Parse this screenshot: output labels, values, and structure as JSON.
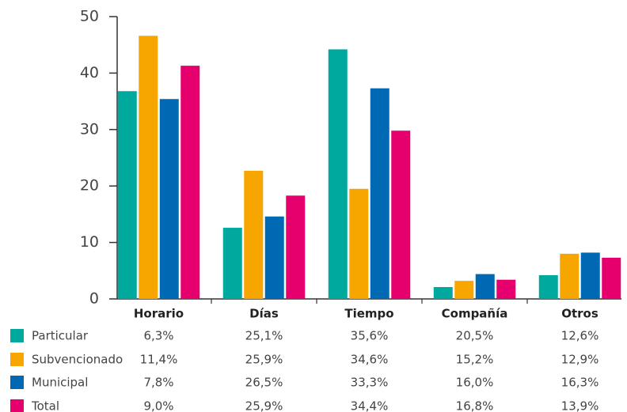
{
  "chart_data": {
    "type": "bar",
    "categories": [
      "Horario",
      "Días",
      "Tiempo",
      "Compañía",
      "Otros"
    ],
    "series": [
      {
        "name": "Particular",
        "color": "#00a99d",
        "values": [
          36.8,
          12.6,
          44.2,
          2.1,
          4.2
        ]
      },
      {
        "name": "Subvencionado",
        "color": "#f7a600",
        "values": [
          46.6,
          22.7,
          19.5,
          3.2,
          8.0
        ]
      },
      {
        "name": "Municipal",
        "color": "#0069b4",
        "values": [
          35.4,
          14.6,
          37.3,
          4.4,
          8.2
        ]
      },
      {
        "name": "Total",
        "color": "#e5006e",
        "values": [
          41.3,
          18.3,
          29.8,
          3.4,
          7.3
        ]
      }
    ],
    "ylim": [
      0,
      50
    ],
    "yticks": [
      0,
      10,
      20,
      30,
      40,
      50
    ],
    "table": {
      "rows": [
        [
          "6,3%",
          "25,1%",
          "35,6%",
          "20,5%",
          "12,6%"
        ],
        [
          "11,4%",
          "25,9%",
          "34,6%",
          "15,2%",
          "12,9%"
        ],
        [
          "7,8%",
          "26,5%",
          "33,3%",
          "16,0%",
          "16,3%"
        ],
        [
          "9,0%",
          "25,9%",
          "34,4%",
          "16,8%",
          "13,9%"
        ]
      ]
    }
  }
}
